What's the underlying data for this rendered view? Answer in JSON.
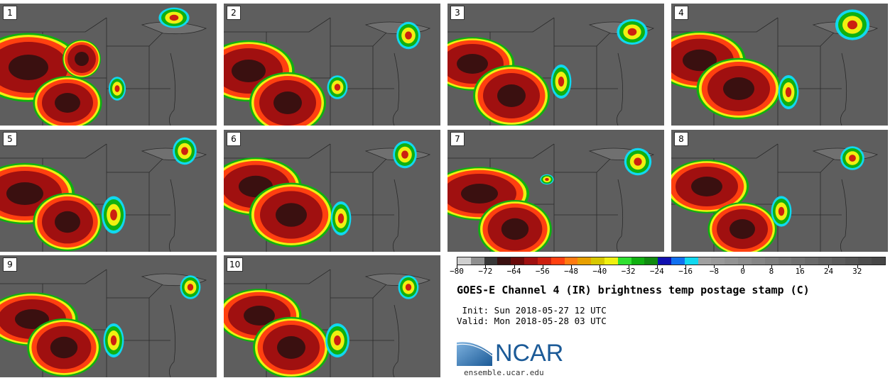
{
  "panels": [
    {
      "label": "1"
    },
    {
      "label": "2"
    },
    {
      "label": "3"
    },
    {
      "label": "4"
    },
    {
      "label": "5"
    },
    {
      "label": "6"
    },
    {
      "label": "7"
    },
    {
      "label": "8"
    },
    {
      "label": "9"
    },
    {
      "label": "10"
    }
  ],
  "colorbar": {
    "colors": [
      "#cfcfcf",
      "#8f8f8f",
      "#373737",
      "#3a1010",
      "#6a0a0a",
      "#a01010",
      "#cc2010",
      "#ff4010",
      "#ff7a10",
      "#e8a000",
      "#d8c800",
      "#f0f010",
      "#30e030",
      "#10b010",
      "#108a10",
      "#1010b0",
      "#1070f0",
      "#10d8f0",
      "#a0a0a0",
      "#9a9a9a",
      "#939393",
      "#8c8c8c",
      "#858585",
      "#7e7e7e",
      "#777777",
      "#707070",
      "#696969",
      "#626262",
      "#5b5b5b",
      "#545454",
      "#4d4d4d",
      "#464646"
    ],
    "ticks": [
      "−80",
      "−72",
      "−64",
      "−56",
      "−48",
      "−40",
      "−32",
      "−24",
      "−16",
      "−8",
      "0",
      "8",
      "16",
      "24",
      "32"
    ],
    "vmin": -80,
    "vmax": 40
  },
  "title": "GOES-E Channel 4 (IR) brightness temp postage stamp (C)",
  "init": " Init: Sun 2018-05-27 12 UTC",
  "valid": "Valid: Mon 2018-05-28 03 UTC",
  "logo_text": "NCAR",
  "site": "ensemble.ucar.edu"
}
